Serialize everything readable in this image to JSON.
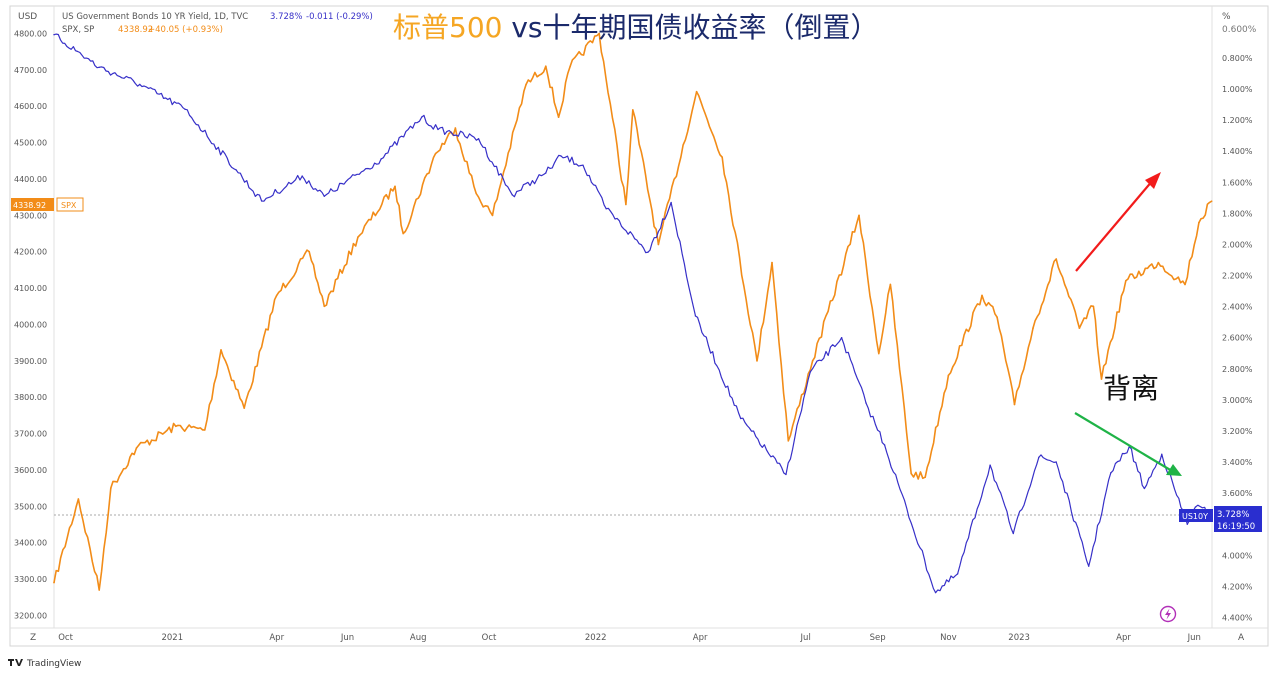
{
  "chart_title": {
    "part1": "标普500",
    "part2": "vs十年期国债收益率（倒置）"
  },
  "legend": {
    "us10y": {
      "name": "US Government Bonds 10 YR Yield, 1D, TVC",
      "last": "3.728%",
      "change": "-0.011 (-0.29%)"
    },
    "spx": {
      "name": "SPX, SP",
      "last": "4338.92",
      "change": "+40.05 (+0.93%)"
    }
  },
  "axis": {
    "left_unit": "USD",
    "right_unit": "%",
    "left_ticks": [
      "4800.00",
      "4700.00",
      "4600.00",
      "4500.00",
      "4400.00",
      "4300.00",
      "4200.00",
      "4100.00",
      "4000.00",
      "3900.00",
      "3800.00",
      "3700.00",
      "3600.00",
      "3500.00",
      "3400.00",
      "3300.00",
      "3200.00"
    ],
    "right_ticks": [
      "0.800%",
      "1.000%",
      "1.200%",
      "1.400%",
      "1.600%",
      "1.800%",
      "2.000%",
      "2.200%",
      "2.400%",
      "2.600%",
      "2.800%",
      "3.000%",
      "3.200%",
      "3.400%",
      "3.600%",
      "4.000%",
      "4.200%",
      "4.400%"
    ],
    "top_partial_tick": "0.600%",
    "x_ticks": [
      "Oct",
      "2021",
      "Apr",
      "Jun",
      "Aug",
      "Oct",
      "2022",
      "Apr",
      "Jul",
      "Sep",
      "Nov",
      "2023",
      "Apr",
      "Jun"
    ],
    "left_corner_btn": "Z",
    "right_corner_btn": "A"
  },
  "badges": {
    "spx_price": "4338.92",
    "spx_label": "SPX",
    "us10y_label": "US10Y",
    "us10y_value": "3.728%",
    "us10y_countdown": "16:19:50"
  },
  "annotation": {
    "divergence": "背离"
  },
  "footer": {
    "brand": "TradingView"
  },
  "colors": {
    "spx": "#F28C18",
    "us10y": "#3730C8",
    "up_arrow": "#F21B1B",
    "down_arrow": "#1FB347",
    "title_orange": "#F5A623",
    "title_blue": "#1B2A6B",
    "price_line": "#A8A8A8"
  },
  "chart_data": [
    {
      "type": "line",
      "x_axis": "date",
      "series": [
        {
          "name": "SPX, SP",
          "axis": "left",
          "ylim": [
            3200,
            4800
          ],
          "points": [
            [
              "2020-09-21",
              3290
            ],
            [
              "2020-10-12",
              3520
            ],
            [
              "2020-10-30",
              3270
            ],
            [
              "2020-11-09",
              3550
            ],
            [
              "2020-12-01",
              3660
            ],
            [
              "2021-01-04",
              3720
            ],
            [
              "2021-01-29",
              3710
            ],
            [
              "2021-02-12",
              3930
            ],
            [
              "2021-03-04",
              3770
            ],
            [
              "2021-04-01",
              4080
            ],
            [
              "2021-04-29",
              4200
            ],
            [
              "2021-05-12",
              4050
            ],
            [
              "2021-06-10",
              4240
            ],
            [
              "2021-07-12",
              4380
            ],
            [
              "2021-07-19",
              4250
            ],
            [
              "2021-08-16",
              4470
            ],
            [
              "2021-09-02",
              4540
            ],
            [
              "2021-09-20",
              4360
            ],
            [
              "2021-10-04",
              4300
            ],
            [
              "2021-11-02",
              4660
            ],
            [
              "2021-11-19",
              4710
            ],
            [
              "2021-11-30",
              4570
            ],
            [
              "2021-12-10",
              4710
            ],
            [
              "2022-01-04",
              4800
            ],
            [
              "2022-01-27",
              4330
            ],
            [
              "2022-02-02",
              4590
            ],
            [
              "2022-02-24",
              4220
            ],
            [
              "2022-03-29",
              4640
            ],
            [
              "2022-04-20",
              4460
            ],
            [
              "2022-05-20",
              3900
            ],
            [
              "2022-06-02",
              4170
            ],
            [
              "2022-06-16",
              3680
            ],
            [
              "2022-07-07",
              3900
            ],
            [
              "2022-08-16",
              4300
            ],
            [
              "2022-09-02",
              3920
            ],
            [
              "2022-09-12",
              4110
            ],
            [
              "2022-09-30",
              3590
            ],
            [
              "2022-10-12",
              3580
            ],
            [
              "2022-11-01",
              3860
            ],
            [
              "2022-11-30",
              4080
            ],
            [
              "2022-12-13",
              4020
            ],
            [
              "2022-12-28",
              3780
            ],
            [
              "2023-01-13",
              3990
            ],
            [
              "2023-02-02",
              4180
            ],
            [
              "2023-02-22",
              3990
            ],
            [
              "2023-03-06",
              4050
            ],
            [
              "2023-03-13",
              3850
            ],
            [
              "2023-04-03",
              4120
            ],
            [
              "2023-05-01",
              4170
            ],
            [
              "2023-05-24",
              4110
            ],
            [
              "2023-06-05",
              4280
            ],
            [
              "2023-06-16",
              4338.92
            ]
          ]
        },
        {
          "name": "US Government Bonds 10 YR Yield, 1D, TVC",
          "axis": "right",
          "inverted": true,
          "ylim": [
            4.4,
            0.6
          ],
          "points": [
            [
              "2020-09-21",
              0.65
            ],
            [
              "2020-10-30",
              0.86
            ],
            [
              "2020-12-04",
              0.97
            ],
            [
              "2021-01-12",
              1.13
            ],
            [
              "2021-02-25",
              1.52
            ],
            [
              "2021-03-19",
              1.72
            ],
            [
              "2021-04-23",
              1.56
            ],
            [
              "2021-05-12",
              1.69
            ],
            [
              "2021-06-30",
              1.45
            ],
            [
              "2021-08-04",
              1.18
            ],
            [
              "2021-08-18",
              1.26
            ],
            [
              "2021-09-22",
              1.32
            ],
            [
              "2021-10-21",
              1.68
            ],
            [
              "2021-11-19",
              1.54
            ],
            [
              "2021-12-02",
              1.43
            ],
            [
              "2021-12-21",
              1.49
            ],
            [
              "2022-01-10",
              1.77
            ],
            [
              "2022-02-15",
              2.05
            ],
            [
              "2022-03-07",
              1.73
            ],
            [
              "2022-03-28",
              2.46
            ],
            [
              "2022-05-06",
              3.12
            ],
            [
              "2022-06-14",
              3.48
            ],
            [
              "2022-07-05",
              2.82
            ],
            [
              "2022-08-01",
              2.6
            ],
            [
              "2022-08-22",
              3.02
            ],
            [
              "2022-09-07",
              3.29
            ],
            [
              "2022-10-21",
              4.24
            ],
            [
              "2022-11-09",
              4.12
            ],
            [
              "2022-12-07",
              3.42
            ],
            [
              "2022-12-27",
              3.86
            ],
            [
              "2023-01-18",
              3.37
            ],
            [
              "2023-02-02",
              3.4
            ],
            [
              "2023-03-02",
              4.07
            ],
            [
              "2023-03-21",
              3.47
            ],
            [
              "2023-04-06",
              3.3
            ],
            [
              "2023-04-19",
              3.57
            ],
            [
              "2023-05-04",
              3.35
            ],
            [
              "2023-05-26",
              3.8
            ],
            [
              "2023-06-02",
              3.69
            ],
            [
              "2023-06-16",
              3.728
            ]
          ]
        }
      ]
    }
  ]
}
